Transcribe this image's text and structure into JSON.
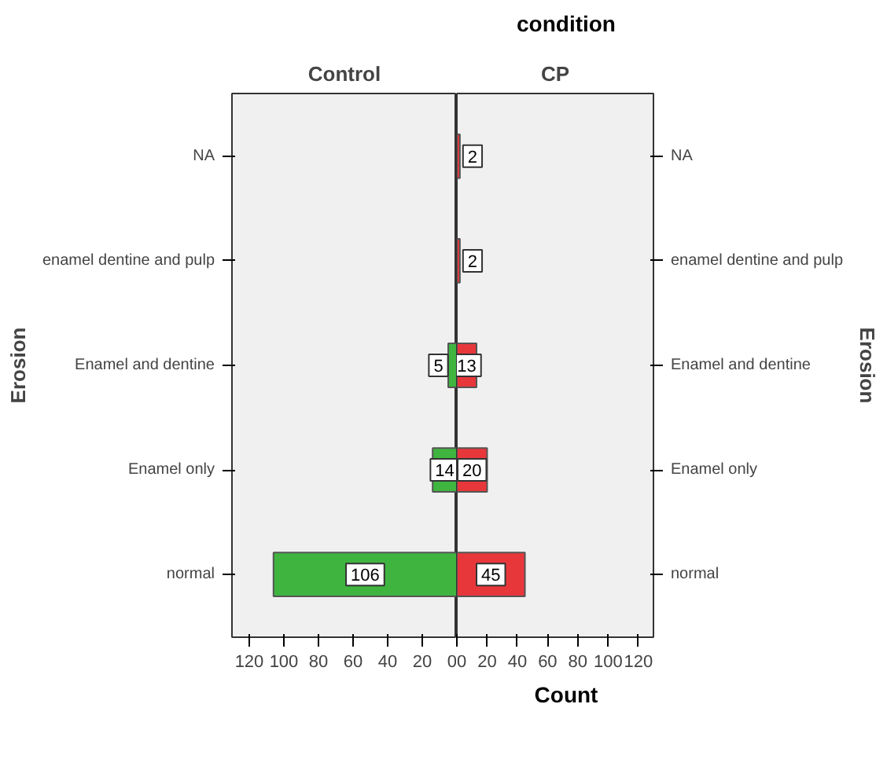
{
  "chart_data": [
    {
      "type": "bar",
      "orientation": "horizontal",
      "title": "Control",
      "ylabel": "Erosion",
      "xlabel": "Count",
      "annotations": [
        "condition"
      ],
      "categories": [
        "NA",
        "enamel dentine and pulp",
        "Enamel and dentine",
        "Enamel only",
        "normal"
      ],
      "values": [
        0,
        0,
        5,
        14,
        106
      ],
      "value_labels": [
        null,
        null,
        "5",
        "14",
        "106"
      ],
      "color": "#3fb53f",
      "xlim": [
        130,
        0
      ],
      "xticks": [
        120,
        100,
        80,
        60,
        40,
        20,
        0
      ],
      "grid": false
    },
    {
      "type": "bar",
      "orientation": "horizontal",
      "title": "CP",
      "y2label": "Erosion",
      "categories": [
        "NA",
        "enamel dentine and pulp",
        "Enamel and dentine",
        "Enamel only",
        "normal"
      ],
      "values": [
        2,
        2,
        13,
        20,
        45
      ],
      "data_labels": true,
      "color": "#e8373b",
      "xlim": [
        0,
        130
      ],
      "xticks": [
        0,
        20,
        40,
        60,
        80,
        100,
        120
      ],
      "grid": false
    }
  ]
}
